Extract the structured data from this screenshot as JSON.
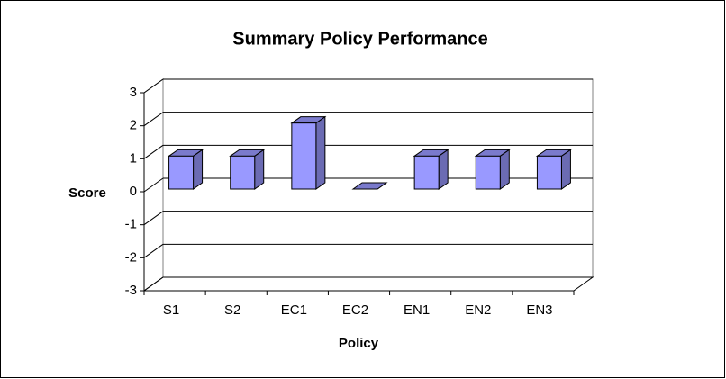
{
  "chart_data": {
    "type": "bar",
    "title": "Summary Policy Performance",
    "x_label": "Policy",
    "y_label": "Score",
    "categories": [
      "S1",
      "S2",
      "EC1",
      "EC2",
      "EN1",
      "EN2",
      "EN3"
    ],
    "values": [
      1,
      1,
      2,
      0,
      1,
      1,
      1
    ],
    "color": "#9999ff",
    "ylim": [
      -3,
      3
    ],
    "yticks": [
      -3,
      -2,
      -1,
      0,
      1,
      2,
      3
    ],
    "grid": true
  }
}
